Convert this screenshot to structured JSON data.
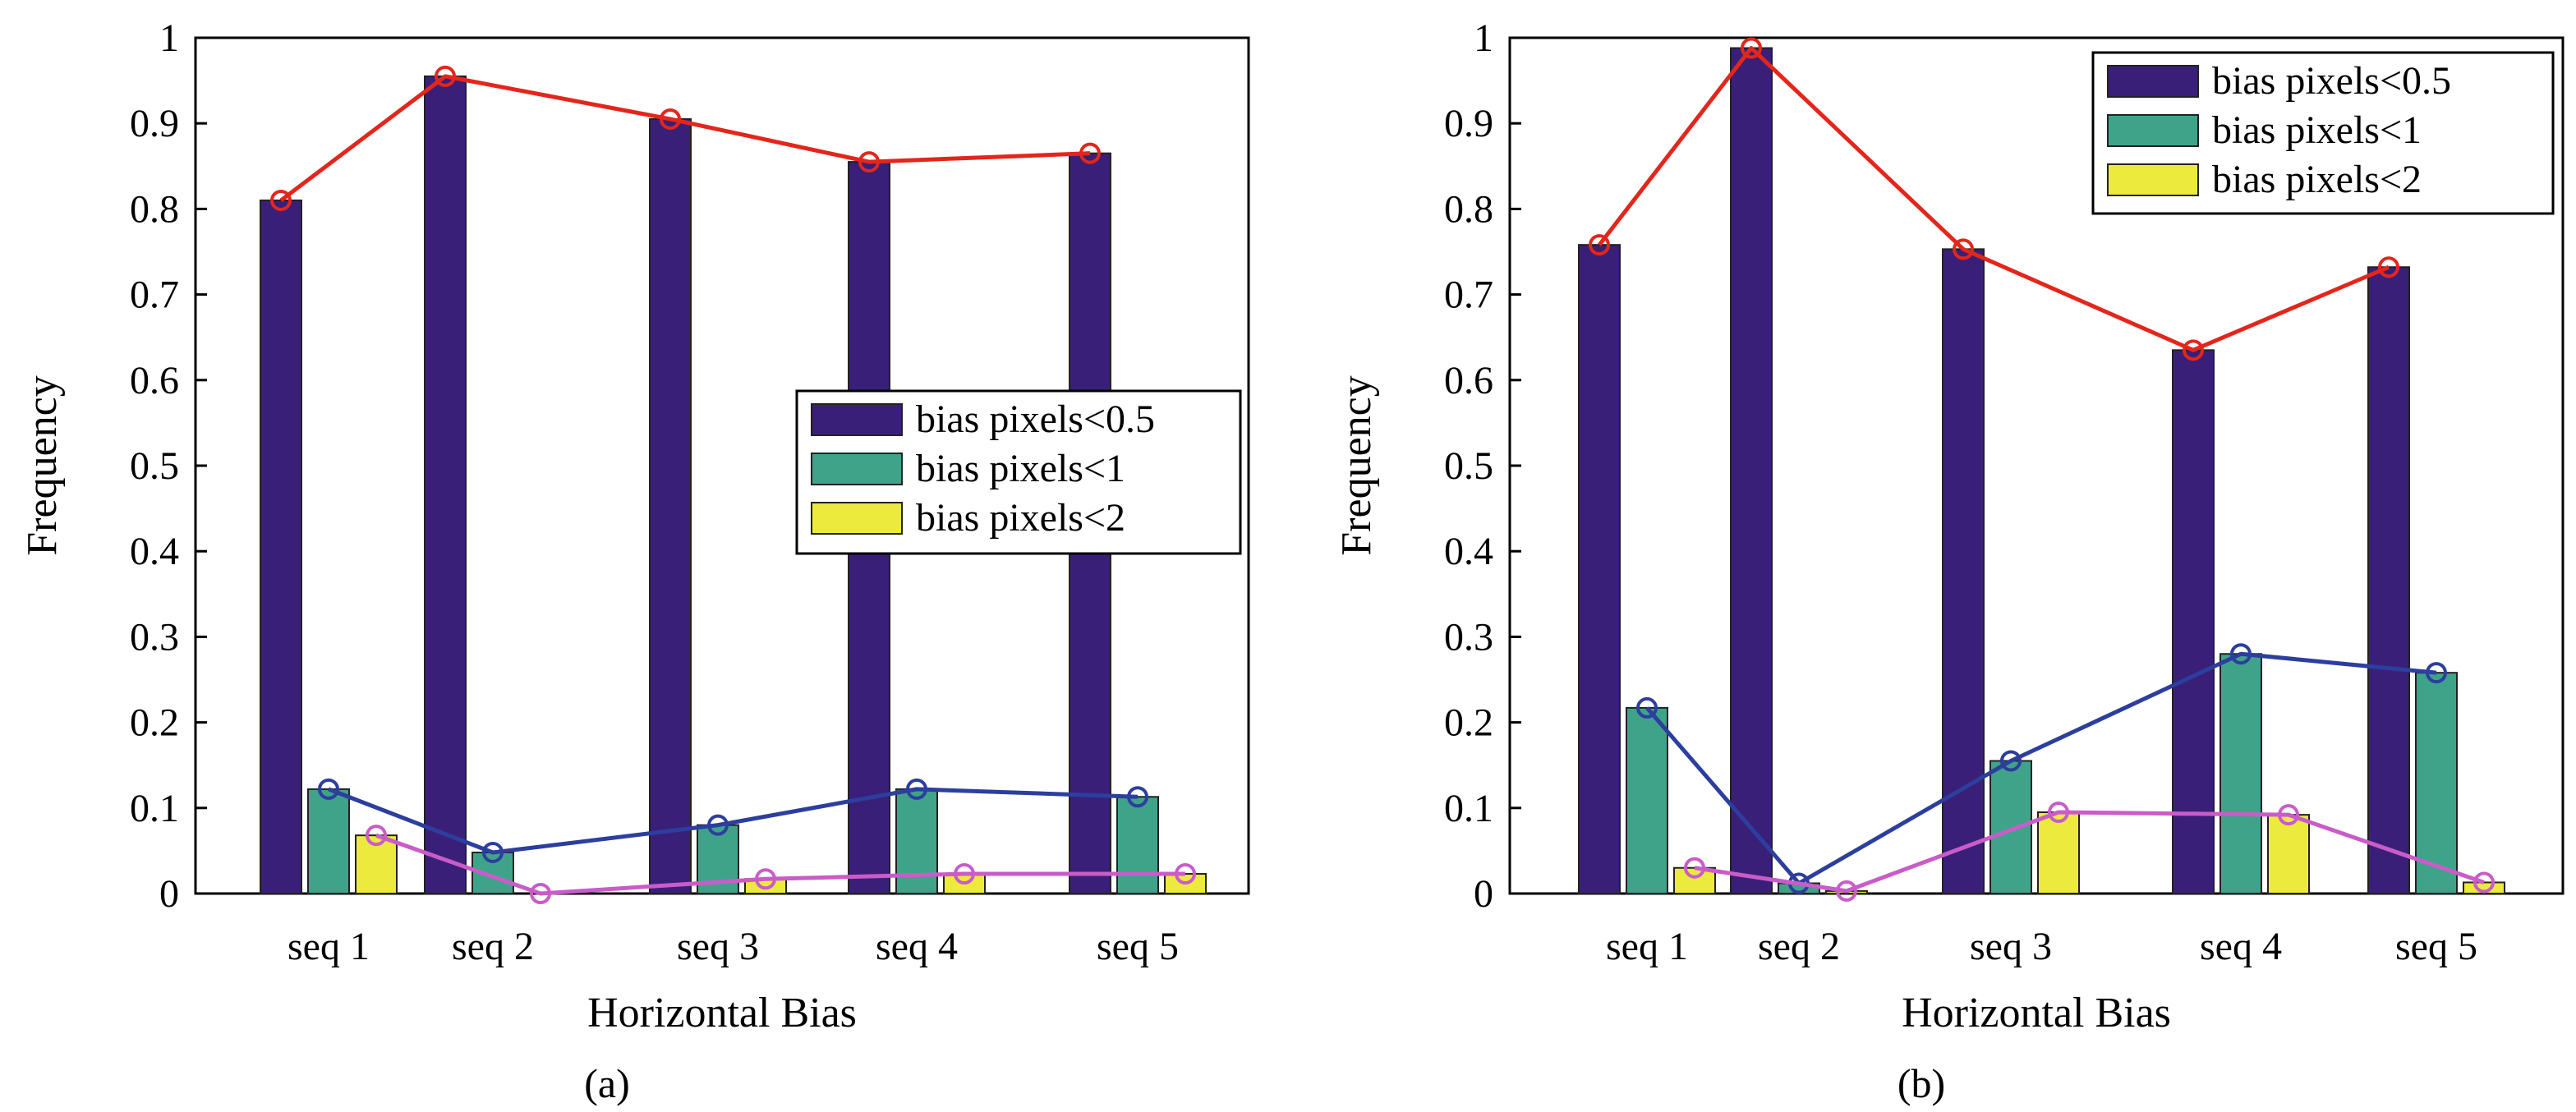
{
  "figure": {
    "panel_labels": [
      "(a)",
      "(b)"
    ]
  },
  "colors": {
    "bar_lt05": "#3a1f78",
    "bar_lt1": "#3fa38a",
    "bar_lt2": "#ecea3c",
    "line_lt05": "#e3261c",
    "line_lt1": "#2c3e9e",
    "line_lt2": "#c95cc9",
    "axis": "#000000",
    "background": "#ffffff"
  },
  "chart_data": [
    {
      "type": "bar",
      "panel": "(a)",
      "title": "",
      "xlabel": "Horizontal Bias",
      "ylabel": "Frequency",
      "categories": [
        "seq 1",
        "seq 2",
        "seq 3",
        "seq 4",
        "seq 5"
      ],
      "ylim": [
        0,
        1
      ],
      "yticks": [
        "0",
        "0.1",
        "0.2",
        "0.3",
        "0.4",
        "0.5",
        "0.6",
        "0.7",
        "0.8",
        "0.9",
        "1"
      ],
      "legend_position": "center-right",
      "series": [
        {
          "name": "bias pixels<0.5",
          "values": [
            0.81,
            0.955,
            0.905,
            0.855,
            0.865
          ]
        },
        {
          "name": "bias pixels<1",
          "values": [
            0.122,
            0.048,
            0.08,
            0.122,
            0.113
          ]
        },
        {
          "name": "bias pixels<2",
          "values": [
            0.068,
            0.0,
            0.017,
            0.023,
            0.023
          ]
        }
      ],
      "overlay": "line with circle markers connecting each series' values"
    },
    {
      "type": "bar",
      "panel": "(b)",
      "title": "",
      "xlabel": "Horizontal Bias",
      "ylabel": "Frequency",
      "categories": [
        "seq 1",
        "seq 2",
        "seq 3",
        "seq 4",
        "seq 5"
      ],
      "ylim": [
        0,
        1
      ],
      "yticks": [
        "0",
        "0.1",
        "0.2",
        "0.3",
        "0.4",
        "0.5",
        "0.6",
        "0.7",
        "0.8",
        "0.9",
        "1"
      ],
      "legend_position": "top-right",
      "series": [
        {
          "name": "bias pixels<0.5",
          "values": [
            0.758,
            0.988,
            0.753,
            0.635,
            0.732
          ]
        },
        {
          "name": "bias pixels<1",
          "values": [
            0.217,
            0.012,
            0.155,
            0.28,
            0.258
          ]
        },
        {
          "name": "bias pixels<2",
          "values": [
            0.03,
            0.003,
            0.095,
            0.092,
            0.013
          ]
        }
      ],
      "overlay": "line with circle markers connecting each series' values"
    }
  ]
}
